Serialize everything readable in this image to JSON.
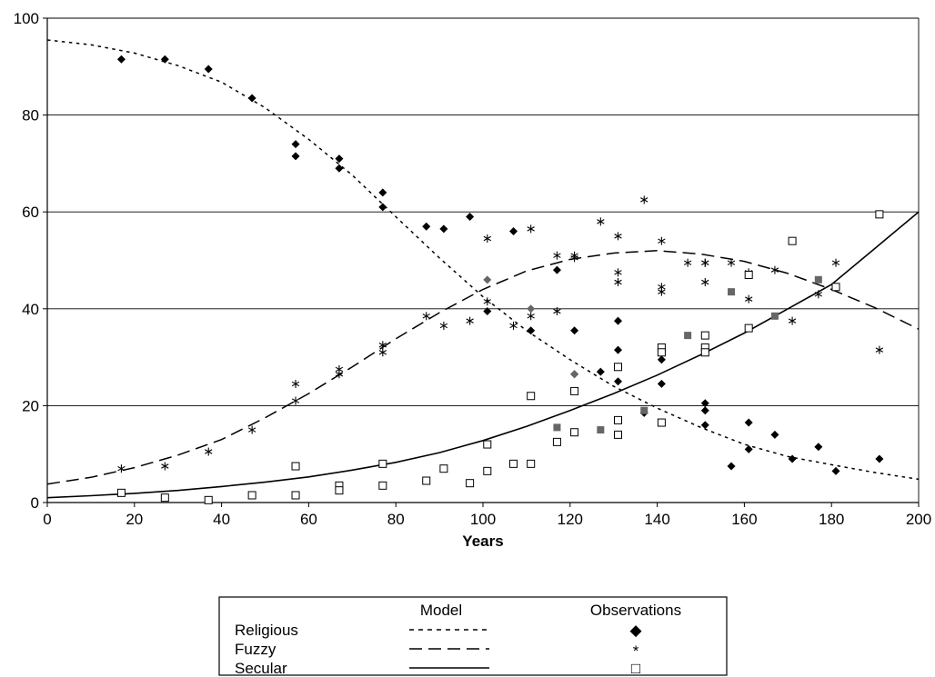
{
  "chart_data": {
    "type": "scatter",
    "title": "",
    "xlabel": "Years",
    "ylabel": "",
    "xlim": [
      0,
      200
    ],
    "ylim": [
      0,
      100
    ],
    "xticks": [
      0,
      20,
      40,
      60,
      80,
      100,
      120,
      140,
      160,
      180,
      200
    ],
    "yticks": [
      0,
      20,
      40,
      60,
      80,
      100
    ],
    "grid": "horizontal",
    "legend": {
      "position": "bottom",
      "header_model": "Model",
      "header_observations": "Observations",
      "entries": [
        {
          "label": "Religious",
          "line": "dotted",
          "marker": "diamond",
          "marker_glyph": "◆"
        },
        {
          "label": "Fuzzy",
          "line": "dashed",
          "marker": "asterisk",
          "marker_glyph": "*"
        },
        {
          "label": "Secular",
          "line": "solid",
          "marker": "open-square",
          "marker_glyph": "□"
        }
      ]
    },
    "series": [
      {
        "name": "Religious",
        "kind": "model",
        "style": "dotted",
        "x": [
          0,
          10,
          20,
          30,
          40,
          50,
          60,
          70,
          80,
          90,
          100,
          110,
          120,
          130,
          140,
          150,
          160,
          170,
          180,
          190,
          200
        ],
        "y": [
          95.5,
          94.5,
          92.8,
          90.2,
          86.8,
          81.5,
          75.0,
          67.6,
          59.0,
          50.5,
          42.5,
          35.5,
          29.5,
          24.0,
          19.5,
          15.5,
          12.0,
          9.5,
          7.8,
          6.2,
          4.8
        ]
      },
      {
        "name": "Fuzzy",
        "kind": "model",
        "style": "dashed",
        "x": [
          0,
          10,
          20,
          30,
          40,
          50,
          60,
          70,
          80,
          90,
          100,
          110,
          120,
          130,
          140,
          150,
          160,
          170,
          180,
          190,
          200
        ],
        "y": [
          3.8,
          5.2,
          7.2,
          9.8,
          13.0,
          17.5,
          22.5,
          28.0,
          33.8,
          39.2,
          44.0,
          47.8,
          50.2,
          51.5,
          52.0,
          51.3,
          49.8,
          47.3,
          44.0,
          40.2,
          35.8
        ]
      },
      {
        "name": "Secular",
        "kind": "model",
        "style": "solid",
        "x": [
          0,
          10,
          20,
          30,
          40,
          50,
          60,
          70,
          80,
          90,
          100,
          110,
          120,
          130,
          140,
          150,
          160,
          170,
          180,
          190,
          200
        ],
        "y": [
          1.0,
          1.4,
          1.9,
          2.5,
          3.3,
          4.2,
          5.3,
          6.7,
          8.3,
          10.3,
          12.8,
          15.7,
          19.0,
          22.5,
          26.3,
          30.5,
          35.0,
          40.0,
          45.0,
          52.5,
          60.0
        ]
      },
      {
        "name": "Religious",
        "kind": "observations",
        "marker": "diamond",
        "x": [
          17,
          27,
          37,
          47,
          57,
          57,
          67,
          67,
          77,
          77,
          87,
          91,
          97,
          101,
          107,
          111,
          117,
          121,
          121,
          127,
          131,
          131,
          131,
          137,
          141,
          141,
          151,
          151,
          151,
          157,
          161,
          161,
          167,
          171,
          177,
          181,
          191
        ],
        "y": [
          91.5,
          91.5,
          89.5,
          83.5,
          74,
          71.5,
          71,
          69,
          64,
          61,
          57,
          56.5,
          59,
          39.5,
          56,
          35.5,
          48,
          35.5,
          26.5,
          27,
          37.5,
          31.5,
          25,
          18.5,
          29.5,
          24.5,
          20.5,
          19,
          16,
          7.5,
          16.5,
          11,
          14,
          9,
          11.5,
          6.5,
          9
        ]
      },
      {
        "name": "Fuzzy",
        "kind": "observations",
        "marker": "asterisk",
        "x": [
          17,
          27,
          37,
          47,
          57,
          57,
          67,
          67,
          77,
          77,
          87,
          91,
          97,
          101,
          101,
          107,
          111,
          111,
          117,
          117,
          121,
          121,
          127,
          131,
          131,
          131,
          137,
          141,
          141,
          141,
          147,
          151,
          151,
          151,
          157,
          161,
          161,
          167,
          171,
          177,
          181,
          191
        ],
        "y": [
          7,
          7.5,
          10.5,
          15,
          24.5,
          21,
          27.5,
          26.5,
          32.5,
          31,
          38.5,
          36.5,
          37.5,
          54.5,
          41.5,
          36.5,
          56.5,
          38.5,
          51,
          39.5,
          51,
          50.5,
          58,
          55,
          47.5,
          45.5,
          62.5,
          54,
          44.5,
          43.5,
          49.5,
          49.5,
          49.5,
          45.5,
          49.5,
          47.5,
          42,
          48,
          37.5,
          43,
          49.5,
          31.5
        ]
      },
      {
        "name": "Secular",
        "kind": "observations",
        "marker": "open-square",
        "x": [
          17,
          27,
          37,
          47,
          57,
          57,
          67,
          67,
          77,
          77,
          87,
          91,
          97,
          101,
          101,
          107,
          111,
          111,
          117,
          121,
          121,
          131,
          131,
          131,
          141,
          141,
          141,
          151,
          151,
          151,
          161,
          161,
          171,
          181,
          191
        ],
        "y": [
          2,
          1,
          0.5,
          1.5,
          7.5,
          1.5,
          3.5,
          2.5,
          8,
          3.5,
          4.5,
          7,
          4,
          12,
          6.5,
          8,
          22,
          8,
          12.5,
          23,
          14.5,
          28,
          17,
          14,
          32,
          31,
          16.5,
          32,
          31,
          34.5,
          47,
          36,
          54,
          44.5,
          59.5
        ]
      },
      {
        "name": "",
        "kind": "observations",
        "marker": "filled-square-gray",
        "x": [
          117,
          127,
          137,
          147,
          157,
          167,
          177
        ],
        "y": [
          15.5,
          15,
          19,
          34.5,
          43.5,
          38.5,
          46
        ]
      },
      {
        "name": "",
        "kind": "observations",
        "marker": "diamond-gray",
        "x": [
          101,
          111,
          121
        ],
        "y": [
          46,
          40,
          26.5
        ]
      }
    ]
  }
}
